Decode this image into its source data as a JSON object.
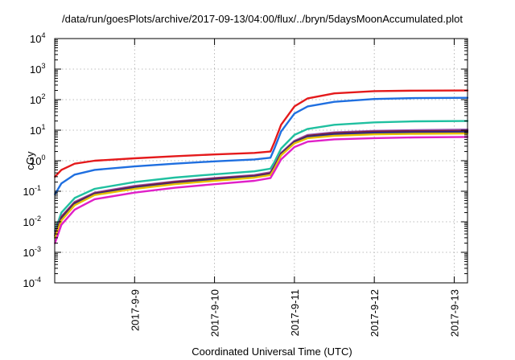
{
  "chart_data": {
    "type": "line",
    "title": "/data/run/goesPlots/archive/2017-09-13/04:00/flux/../bryn/5daysMoonAccumulated.plot",
    "xlabel": "Coordinated Universal Time (UTC)",
    "ylabel": "cGy",
    "x_unit": "days",
    "xlim": [
      "2017-09-08",
      "2017-09-13 04:00"
    ],
    "x_ticks": [
      "2017-9-9",
      "2017-9-10",
      "2017-9-11",
      "2017-9-12",
      "2017-9-13"
    ],
    "y_scale": "log",
    "ylim": [
      0.0001,
      10000
    ],
    "y_ticks": [
      {
        "base": "10",
        "exp": "-4"
      },
      {
        "base": "10",
        "exp": "-3"
      },
      {
        "base": "10",
        "exp": "-2"
      },
      {
        "base": "10",
        "exp": "-1"
      },
      {
        "base": "10",
        "exp": "0"
      },
      {
        "base": "10",
        "exp": "1"
      },
      {
        "base": "10",
        "exp": "2"
      },
      {
        "base": "10",
        "exp": "3"
      },
      {
        "base": "10",
        "exp": "4"
      }
    ],
    "grid": true,
    "series": [
      {
        "color": "#e41a1c",
        "x": [
          "2017-09-08 00:05",
          "2017-09-08 02:00",
          "2017-09-08 06:00",
          "2017-09-08 12:00",
          "2017-09-09 00:00",
          "2017-09-09 12:00",
          "2017-09-10 00:00",
          "2017-09-10 12:00",
          "2017-09-10 16:48",
          "2017-09-10 18:00",
          "2017-09-10 20:00",
          "2017-09-11 00:00",
          "2017-09-11 04:00",
          "2017-09-11 12:00",
          "2017-09-12 00:00",
          "2017-09-12 12:00",
          "2017-09-13 04:00"
        ],
        "y": [
          0.3,
          0.5,
          0.8,
          1.0,
          1.2,
          1.4,
          1.6,
          1.8,
          2.0,
          4,
          15,
          60,
          110,
          160,
          190,
          197,
          200
        ]
      },
      {
        "color": "#1f6fe0",
        "x": [
          "2017-09-08 00:05",
          "2017-09-08 02:00",
          "2017-09-08 06:00",
          "2017-09-08 12:00",
          "2017-09-09 00:00",
          "2017-09-09 12:00",
          "2017-09-10 00:00",
          "2017-09-10 12:00",
          "2017-09-10 16:48",
          "2017-09-10 18:00",
          "2017-09-10 20:00",
          "2017-09-11 00:00",
          "2017-09-11 04:00",
          "2017-09-11 12:00",
          "2017-09-12 00:00",
          "2017-09-12 12:00",
          "2017-09-13 04:00"
        ],
        "y": [
          0.08,
          0.18,
          0.35,
          0.5,
          0.65,
          0.8,
          0.95,
          1.1,
          1.25,
          2.5,
          9,
          35,
          60,
          85,
          105,
          112,
          115
        ]
      },
      {
        "color": "#20c0a0",
        "x": [
          "2017-09-08 00:05",
          "2017-09-08 02:00",
          "2017-09-08 06:00",
          "2017-09-08 12:00",
          "2017-09-09 00:00",
          "2017-09-09 12:00",
          "2017-09-10 00:00",
          "2017-09-10 12:00",
          "2017-09-10 16:48",
          "2017-09-10 18:00",
          "2017-09-10 20:00",
          "2017-09-11 00:00",
          "2017-09-11 04:00",
          "2017-09-11 12:00",
          "2017-09-12 00:00",
          "2017-09-12 12:00",
          "2017-09-13 04:00"
        ],
        "y": [
          0.005,
          0.02,
          0.06,
          0.12,
          0.2,
          0.28,
          0.36,
          0.45,
          0.55,
          0.9,
          2.5,
          7,
          11,
          15,
          18,
          19.5,
          20
        ]
      },
      {
        "color": "#9b59b6",
        "x": [
          "2017-09-08 00:05",
          "2017-09-08 02:00",
          "2017-09-08 06:00",
          "2017-09-08 12:00",
          "2017-09-09 00:00",
          "2017-09-09 12:00",
          "2017-09-10 00:00",
          "2017-09-10 12:00",
          "2017-09-10 16:48",
          "2017-09-10 18:00",
          "2017-09-10 20:00",
          "2017-09-11 00:00",
          "2017-09-11 04:00",
          "2017-09-11 12:00",
          "2017-09-12 00:00",
          "2017-09-12 12:00",
          "2017-09-13 04:00"
        ],
        "y": [
          0.004,
          0.015,
          0.045,
          0.09,
          0.15,
          0.21,
          0.27,
          0.34,
          0.42,
          0.7,
          1.8,
          4.5,
          7,
          8.5,
          9.5,
          10,
          10.5
        ]
      },
      {
        "color": "#7a1f3d",
        "x": [
          "2017-09-08 00:05",
          "2017-09-08 02:00",
          "2017-09-08 06:00",
          "2017-09-08 12:00",
          "2017-09-09 00:00",
          "2017-09-09 12:00",
          "2017-09-10 00:00",
          "2017-09-10 12:00",
          "2017-09-10 16:48",
          "2017-09-10 18:00",
          "2017-09-10 20:00",
          "2017-09-11 00:00",
          "2017-09-11 04:00",
          "2017-09-11 12:00",
          "2017-09-12 00:00",
          "2017-09-12 12:00",
          "2017-09-13 04:00"
        ],
        "y": [
          0.0035,
          0.014,
          0.042,
          0.085,
          0.14,
          0.2,
          0.26,
          0.32,
          0.39,
          0.65,
          1.7,
          4.2,
          6.5,
          8,
          9,
          9.3,
          9.5
        ]
      },
      {
        "color": "#2a2a8a",
        "x": [
          "2017-09-08 00:05",
          "2017-09-08 02:00",
          "2017-09-08 06:00",
          "2017-09-08 12:00",
          "2017-09-09 00:00",
          "2017-09-09 12:00",
          "2017-09-10 00:00",
          "2017-09-10 12:00",
          "2017-09-10 16:48",
          "2017-09-10 18:00",
          "2017-09-10 20:00",
          "2017-09-11 00:00",
          "2017-09-11 04:00",
          "2017-09-11 12:00",
          "2017-09-12 00:00",
          "2017-09-12 12:00",
          "2017-09-13 04:00"
        ],
        "y": [
          0.003,
          0.012,
          0.038,
          0.08,
          0.13,
          0.18,
          0.24,
          0.3,
          0.36,
          0.6,
          1.6,
          4,
          6,
          7.3,
          8.2,
          8.5,
          8.7
        ]
      },
      {
        "color": "#e8c000",
        "x": [
          "2017-09-08 00:05",
          "2017-09-08 02:00",
          "2017-09-08 06:00",
          "2017-09-08 12:00",
          "2017-09-09 00:00",
          "2017-09-09 12:00",
          "2017-09-10 00:00",
          "2017-09-10 12:00",
          "2017-09-10 16:48",
          "2017-09-10 18:00",
          "2017-09-10 20:00",
          "2017-09-11 00:00",
          "2017-09-11 04:00",
          "2017-09-11 12:00",
          "2017-09-12 00:00",
          "2017-09-12 12:00",
          "2017-09-13 04:00"
        ],
        "y": [
          0.003,
          0.011,
          0.035,
          0.075,
          0.12,
          0.17,
          0.22,
          0.28,
          0.34,
          0.55,
          1.5,
          3.7,
          5.5,
          6.6,
          7.3,
          7.6,
          7.8
        ]
      },
      {
        "color": "#e020c8",
        "x": [
          "2017-09-08 00:05",
          "2017-09-08 02:00",
          "2017-09-08 06:00",
          "2017-09-08 12:00",
          "2017-09-09 00:00",
          "2017-09-09 12:00",
          "2017-09-10 00:00",
          "2017-09-10 12:00",
          "2017-09-10 16:48",
          "2017-09-10 18:00",
          "2017-09-10 20:00",
          "2017-09-11 00:00",
          "2017-09-11 04:00",
          "2017-09-11 12:00",
          "2017-09-12 00:00",
          "2017-09-12 12:00",
          "2017-09-13 04:00"
        ],
        "y": [
          0.002,
          0.008,
          0.025,
          0.055,
          0.09,
          0.13,
          0.17,
          0.22,
          0.27,
          0.45,
          1.1,
          2.8,
          4.2,
          5,
          5.5,
          5.8,
          6
        ]
      }
    ]
  }
}
